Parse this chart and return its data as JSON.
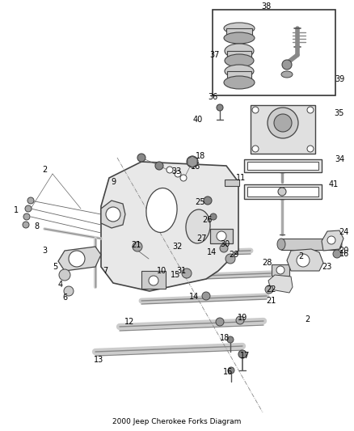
{
  "title": "2000 Jeep Cherokee Forks Diagram",
  "bg_color": "#ffffff",
  "fig_width": 4.38,
  "fig_height": 5.33,
  "dpi": 100,
  "line_color": "#444444",
  "text_color": "#000000",
  "label_fontsize": 7.0
}
